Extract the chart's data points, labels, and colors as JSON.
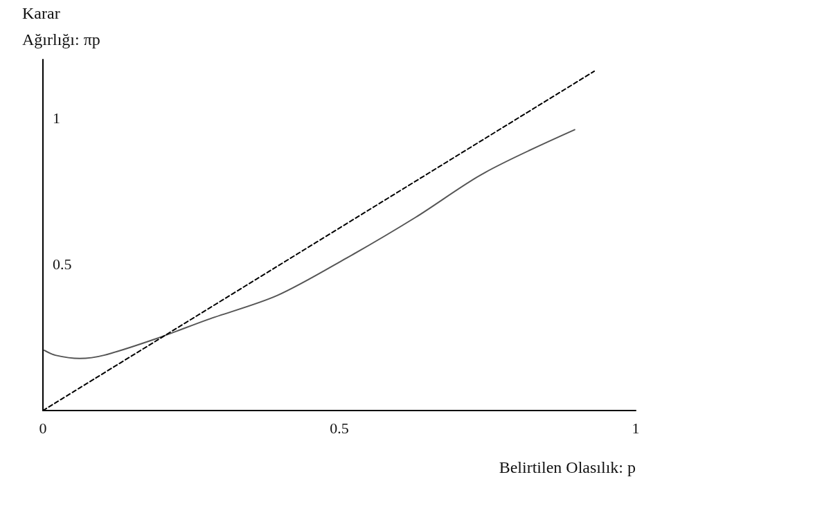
{
  "chart_data": {
    "type": "line",
    "xlabel": "Belirtilen Olasılık: p",
    "ylabel": "Karar\nAğırlığı: πp",
    "xlim": [
      0,
      1
    ],
    "xticks": [
      0,
      0.5,
      1
    ],
    "ylim": [
      0,
      1.2
    ],
    "yticks": [
      0.5,
      1
    ],
    "grid": false,
    "marker": "none",
    "series": [
      {
        "color": "#555555",
        "line_style": "solid",
        "x": [
          0.002,
          0.021,
          0.062,
          0.103,
          0.19,
          0.278,
          0.395,
          0.512,
          0.629,
          0.745,
          0.897
        ],
        "values": [
          0.206,
          0.189,
          0.178,
          0.189,
          0.245,
          0.311,
          0.393,
          0.521,
          0.661,
          0.813,
          0.96
        ]
      },
      {
        "color": "#000000",
        "line_style": "dashed",
        "x": [
          0,
          0.93
        ],
        "values": [
          0,
          1.16
        ]
      }
    ]
  }
}
